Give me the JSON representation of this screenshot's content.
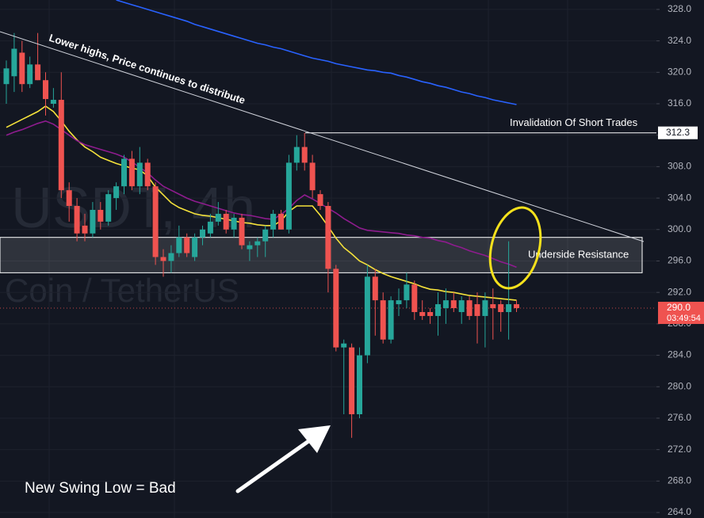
{
  "chart_data": {
    "type": "candlestick",
    "watermark": [
      "USDT, 4h",
      "Coin / TetherUS"
    ],
    "ylim": [
      263.3,
      329.2
    ],
    "yticks": [
      {
        "value": 264,
        "label": "264.0"
      },
      {
        "value": 268,
        "label": "268.0"
      },
      {
        "value": 272,
        "label": "272.0"
      },
      {
        "value": 276,
        "label": "276.0"
      },
      {
        "value": 280,
        "label": "280.0"
      },
      {
        "value": 284,
        "label": "284.0"
      },
      {
        "value": 288,
        "label": "288.0"
      },
      {
        "value": 292,
        "label": "292.0"
      },
      {
        "value": 296,
        "label": "296.0"
      },
      {
        "value": 300,
        "label": "300.0"
      },
      {
        "value": 304,
        "label": "304.0"
      },
      {
        "value": 308,
        "label": "308.0"
      },
      {
        "value": 312,
        "label": "312.0"
      },
      {
        "value": 316,
        "label": "316.0"
      },
      {
        "value": 320,
        "label": "320.0"
      },
      {
        "value": 324,
        "label": "324.0"
      },
      {
        "value": 328,
        "label": "328.0"
      }
    ],
    "up_color": "#26a69a",
    "down_color": "#ef5350",
    "candles": [
      [
        318.5,
        321.5,
        316,
        320.5
      ],
      [
        319.5,
        325,
        317.5,
        323
      ],
      [
        322.5,
        324,
        317.5,
        318.5
      ],
      [
        318.5,
        322,
        318,
        321
      ],
      [
        321,
        325,
        319,
        319
      ],
      [
        319,
        320,
        314.5,
        316.6
      ],
      [
        316,
        318,
        315.5,
        316.5
      ],
      [
        316.5,
        320,
        304,
        305
      ],
      [
        305,
        306,
        301,
        303
      ],
      [
        303,
        304,
        298.5,
        299.5
      ],
      [
        300.5,
        302,
        298.5,
        299.5
      ],
      [
        299.5,
        303.5,
        299,
        302.5
      ],
      [
        302.5,
        303.5,
        300,
        301
      ],
      [
        301,
        305,
        300.5,
        304.5
      ],
      [
        304,
        306,
        302.5,
        305.5
      ],
      [
        305.5,
        309.5,
        304.5,
        309
      ],
      [
        309,
        310,
        305,
        305.5
      ],
      [
        305.5,
        310.5,
        304.5,
        308.5
      ],
      [
        308.5,
        309,
        305,
        305.5
      ],
      [
        305.5,
        306,
        295.5,
        296.5
      ],
      [
        296.5,
        297.5,
        294,
        296
      ],
      [
        296,
        298,
        294.5,
        297
      ],
      [
        297,
        300.5,
        296.5,
        299
      ],
      [
        299,
        299.5,
        296.5,
        297
      ],
      [
        296.5,
        299.5,
        296,
        299
      ],
      [
        299,
        300.5,
        298,
        300
      ],
      [
        299.5,
        302,
        299,
        301
      ],
      [
        301,
        303.5,
        300.5,
        302
      ],
      [
        302,
        302.5,
        299.5,
        300
      ],
      [
        300,
        302,
        299,
        301.5
      ],
      [
        301.5,
        302,
        297.5,
        298
      ],
      [
        297.5,
        298.5,
        296,
        298
      ],
      [
        298,
        299,
        296.5,
        298.5
      ],
      [
        298.5,
        300.5,
        296.5,
        300
      ],
      [
        300,
        302.5,
        299,
        302
      ],
      [
        302,
        302.5,
        300,
        300
      ],
      [
        300,
        309.5,
        299.5,
        308.5
      ],
      [
        308.5,
        312,
        307.5,
        310.5
      ],
      [
        310.5,
        312.3,
        307.5,
        308.5
      ],
      [
        308.5,
        309.5,
        304,
        305
      ],
      [
        304.5,
        305,
        302.5,
        303
      ],
      [
        303,
        303.5,
        292,
        295
      ],
      [
        295,
        295.5,
        284.5,
        285
      ],
      [
        285,
        286,
        276.5,
        285.5
      ],
      [
        285,
        285.5,
        273.5,
        276.5
      ],
      [
        276.5,
        285,
        276,
        284
      ],
      [
        284,
        295.5,
        283,
        294
      ],
      [
        294,
        295,
        286.5,
        291
      ],
      [
        291,
        292,
        285.5,
        286
      ],
      [
        286,
        291.5,
        285.5,
        291
      ],
      [
        290.5,
        292.5,
        289,
        291
      ],
      [
        291,
        294.5,
        290,
        293
      ],
      [
        293,
        293.5,
        288.5,
        289.5
      ],
      [
        289.5,
        291,
        288.5,
        289
      ],
      [
        289.5,
        290,
        288,
        289
      ],
      [
        289,
        292,
        286.5,
        290.5
      ],
      [
        290,
        292.5,
        288,
        291
      ],
      [
        291,
        292,
        289.5,
        290
      ],
      [
        289.5,
        291.5,
        288,
        291
      ],
      [
        291,
        291.5,
        288.5,
        289
      ],
      [
        290.5,
        292,
        285.5,
        289
      ],
      [
        289,
        292,
        285,
        291
      ],
      [
        290.5,
        292.5,
        286,
        290
      ],
      [
        290.5,
        291,
        287,
        289.5
      ],
      [
        289.5,
        298.5,
        286,
        290.5
      ],
      [
        290.5,
        291,
        289.5,
        290
      ]
    ],
    "series": [
      {
        "color": "#f5e23b",
        "values": [
          313,
          313.5,
          314,
          314.5,
          315,
          315.7,
          315,
          313.8,
          312.5,
          311.4,
          310.5,
          309.9,
          309.2,
          308.8,
          308.4,
          308.1,
          307.8,
          307.6,
          306.8,
          305.4,
          304.4,
          303.4,
          302.8,
          302.4,
          302,
          301.8,
          301.7,
          301.5,
          301.3,
          301.1,
          300.9,
          300.8,
          300.6,
          300.5,
          300.5,
          301.1,
          302.3,
          303,
          303,
          303,
          301.8,
          300.4,
          298.9,
          297.7,
          296.9,
          296,
          295.5,
          294.9,
          294.4,
          294,
          293.7,
          293.4,
          293.1,
          292.7,
          292.4,
          292.3,
          292.1,
          292,
          291.8,
          291.6,
          291.5,
          291.4,
          291.3,
          291.2,
          291.1,
          291
        ]
      },
      {
        "color": "#8e1c8e",
        "values": [
          312,
          312.4,
          312.7,
          313.1,
          313.5,
          313.8,
          313.4,
          312.7,
          312,
          311.3,
          310.8,
          310.5,
          310.2,
          309.9,
          309.6,
          309.2,
          308.6,
          307.9,
          307.2,
          306.3,
          305.5,
          305,
          304.5,
          304,
          303.6,
          303.3,
          303,
          302.7,
          302.4,
          302.1,
          301.9,
          301.8,
          301.6,
          301.4,
          301.3,
          301.9,
          302.7,
          303.7,
          304.4,
          303.9,
          303.3,
          302.7,
          302.1,
          301.4,
          300.8,
          300.2,
          299.9,
          299.8,
          299.7,
          299.6,
          299.5,
          299.3,
          299.2,
          299,
          298.9,
          298.6,
          298.4,
          298,
          297.7,
          297.3,
          297,
          296.7,
          296.3,
          295.9,
          295.6,
          295.2
        ]
      },
      {
        "color": "#2962ff",
        "values": [
          null,
          null,
          null,
          null,
          null,
          null,
          null,
          null,
          null,
          null,
          null,
          null,
          null,
          null,
          329.2,
          328.9,
          328.6,
          328.3,
          328,
          327.7,
          327.4,
          327.1,
          326.8,
          326.5,
          326.1,
          325.8,
          325.5,
          325.2,
          324.9,
          324.6,
          324.3,
          324,
          323.7,
          323.5,
          323.2,
          323,
          322.7,
          322.4,
          322.1,
          321.8,
          321.6,
          321.4,
          321.1,
          320.9,
          320.7,
          320.5,
          320.3,
          320.2,
          320,
          319.9,
          319.6,
          319.4,
          319.1,
          318.8,
          318.6,
          318.3,
          318.1,
          317.8,
          317.5,
          317.3,
          317,
          316.8,
          316.5,
          316.3,
          316.1,
          315.9
        ]
      }
    ],
    "invalidation": {
      "label": "Invalidation Of Short Trades",
      "value": 312.3
    },
    "resistance_zone": {
      "label": "Underside Resistance",
      "range": [
        294.5,
        299
      ]
    },
    "last_price": {
      "value": 290,
      "label": "290.0",
      "countdown": "03:49:54"
    },
    "trendline_label": "Lower highs, Price continues to distribute",
    "swing_note": "New Swing Low = Bad"
  }
}
